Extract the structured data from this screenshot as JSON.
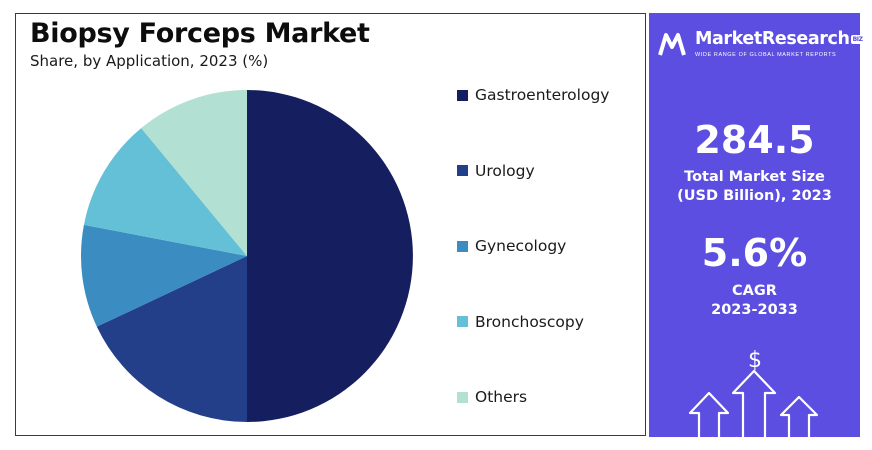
{
  "title": "Biopsy Forceps Market",
  "subtitle": "Share, by Application, 2023 (%)",
  "chart_data": {
    "type": "pie",
    "title": "Biopsy Forceps Market",
    "subtitle": "Share, by Application, 2023 (%)",
    "categories": [
      "Gastroenterology",
      "Urology",
      "Gynecology",
      "Bronchoscopy",
      "Others"
    ],
    "values": [
      50,
      18,
      10,
      11,
      11
    ],
    "colors": [
      "#151e5e",
      "#243f8a",
      "#3b8dc1",
      "#64c0d6",
      "#b2e0d2"
    ],
    "legend_position": "right"
  },
  "panel": {
    "brand_name": "MarketResearch",
    "brand_suffix": "BIZ",
    "brand_tagline": "WIDE RANGE OF GLOBAL MARKET REPORTS",
    "market_size_value": "284.5",
    "market_size_label_1": "Total Market Size",
    "market_size_label_2": "(USD Billion), 2023",
    "cagr_value": "5.6%",
    "cagr_label_1": "CAGR",
    "cagr_label_2": "2023-2033",
    "currency_symbol": "$",
    "background_color": "#5b4ee0"
  }
}
